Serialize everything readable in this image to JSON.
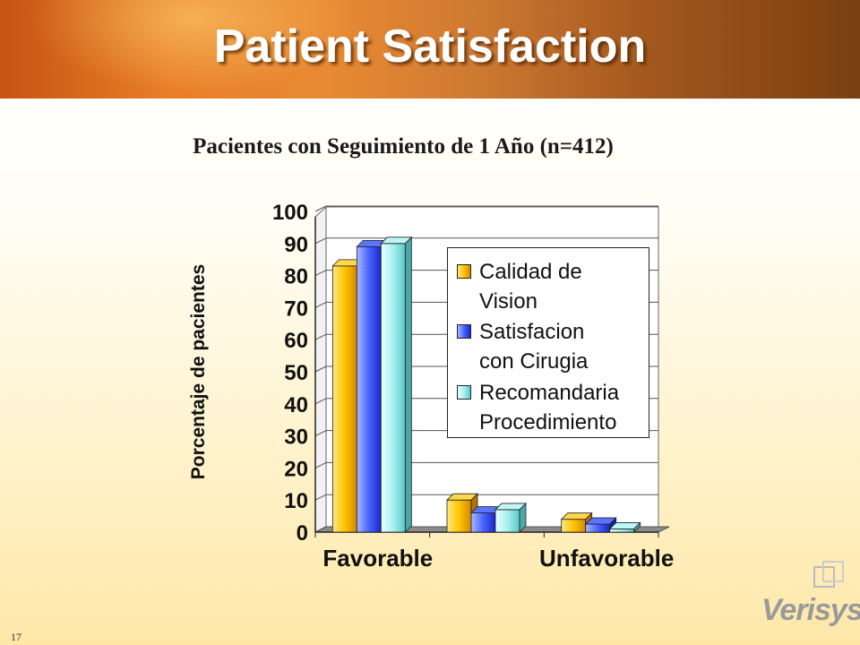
{
  "slide": {
    "title": "Patient Satisfaction",
    "subtitle": "Pacientes con Seguimiento de 1 Añо (n=412)",
    "page_number": "17",
    "logo_text": "Verisyse"
  },
  "chart_data": {
    "type": "bar",
    "title": "Pacientes con Seguimiento de 1 Añо (n=412)",
    "ylabel": "Porcentaje de pacientes",
    "xlabel": "",
    "ylim": [
      0,
      100
    ],
    "yticks": [
      0,
      10,
      20,
      30,
      40,
      50,
      60,
      70,
      80,
      90,
      100
    ],
    "categories": [
      "Favorable",
      "",
      "Unfavorable"
    ],
    "series": [
      {
        "name": "Calidad de\nVision",
        "values": [
          83,
          10,
          4
        ],
        "color": "#ffcc00"
      },
      {
        "name": "Satisfacion\ncon Cirugia",
        "values": [
          89,
          6,
          2.5
        ],
        "color": "#3f5bff"
      },
      {
        "name": "Recomandaria\nProcedimiento",
        "values": [
          90,
          7,
          1
        ],
        "color": "#9eeeee"
      }
    ],
    "grid": true,
    "legend_position": "right",
    "style": "3d"
  }
}
